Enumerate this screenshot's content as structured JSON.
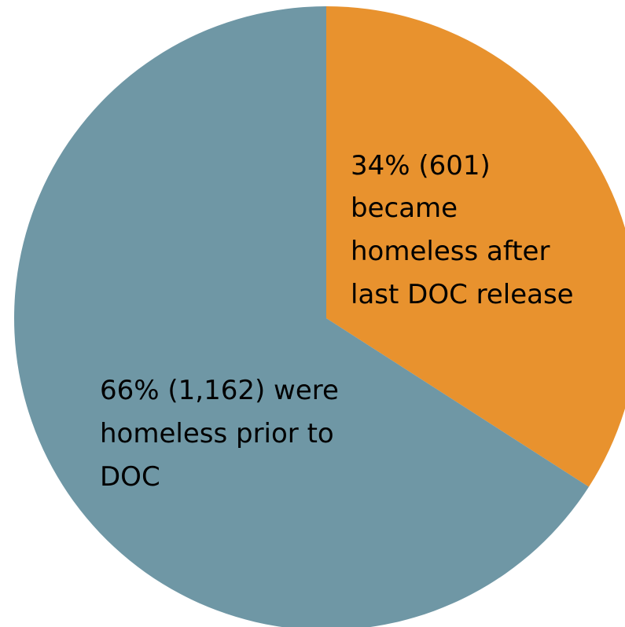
{
  "chart_data": {
    "type": "pie",
    "title": "",
    "slices": [
      {
        "label_lines": [
          "34% (601)",
          "became",
          "homeless after",
          "last DOC release"
        ],
        "percent": 34,
        "count": 601,
        "color": "#E8922E"
      },
      {
        "label_lines": [
          "66% (1,162) were",
          "homeless prior to",
          "DOC"
        ],
        "percent": 66,
        "count": 1162,
        "color": "#6F97A5"
      }
    ]
  }
}
